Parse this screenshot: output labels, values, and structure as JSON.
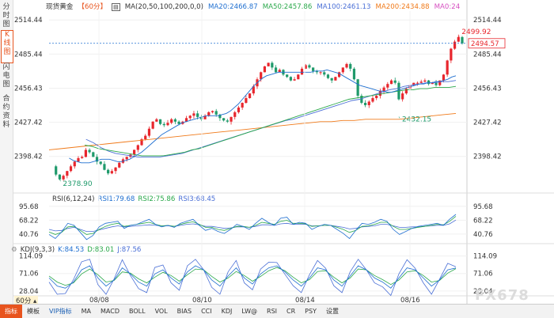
{
  "sidebar": {
    "tabs": [
      {
        "label": "分时图",
        "active": false
      },
      {
        "label": "K线图",
        "active": true
      },
      {
        "label": "闪电图",
        "active": false
      },
      {
        "label": "合约资料",
        "active": false
      }
    ]
  },
  "header": {
    "symbol": "现货黄金",
    "period_tag": "【60分】",
    "ma_label": "MA(20,50,100,200,0,0)",
    "ma20": "MA20:2466.87",
    "ma50": "MA50:2457.86",
    "ma100": "MA100:2461.13",
    "ma200": "MA200:2434.88",
    "ma0": "MA0:24"
  },
  "rsi_header": {
    "label": "RSI(6,12,24)",
    "rsi1": "RSI1:79.68",
    "rsi2": "RSI2:75.86",
    "rsi3": "RSI3:68.45"
  },
  "kdj_header": {
    "label": "KDJ(9,3,3)",
    "k": "K:84.53",
    "d": "D:83.01",
    "j": "J:87.56"
  },
  "colors": {
    "up": "#e8262d",
    "down": "#1f9a6b",
    "ma20": "#1f6fd0",
    "ma50": "#2aa84a",
    "ma100": "#4a6fd6",
    "ma200": "#f07a1a",
    "ma0": "#d64fc0",
    "accent": "#e8541e"
  },
  "chart_data": [
    {
      "type": "candlestick",
      "ylim": [
        2370,
        2522
      ],
      "y_ticks": [
        "2514.44",
        "2485.44",
        "2456.43",
        "2427.42",
        "2398.42"
      ],
      "x_ticks": [
        "08/08",
        "08/10",
        "08/14",
        "08/16"
      ],
      "last_price": "2494.57",
      "annotations": {
        "high": "2499.92",
        "mid_low": "2432.15",
        "low": "2378.90"
      },
      "price_path": [
        2390,
        2383,
        2378.9,
        2382,
        2386,
        2390,
        2394,
        2397,
        2398,
        2404,
        2402,
        2398,
        2394,
        2392,
        2387,
        2384,
        2386,
        2389,
        2393,
        2396,
        2398,
        2400,
        2404,
        2408,
        2413,
        2416,
        2422,
        2428,
        2430,
        2426,
        2425,
        2427,
        2430,
        2428,
        2426,
        2428,
        2431,
        2433,
        2435,
        2432,
        2430,
        2433,
        2436,
        2437,
        2434,
        2431,
        2429,
        2428,
        2432,
        2436,
        2440,
        2444,
        2448,
        2452,
        2458,
        2464,
        2470,
        2475,
        2478,
        2474,
        2470,
        2472,
        2468,
        2466,
        2463,
        2464,
        2468,
        2473,
        2476,
        2474,
        2471,
        2470,
        2470,
        2468,
        2465,
        2463,
        2466,
        2470,
        2474,
        2477,
        2473,
        2464,
        2450,
        2444,
        2442,
        2445,
        2448,
        2450,
        2454,
        2457,
        2460,
        2463,
        2461,
        2447,
        2452,
        2456,
        2459,
        2461,
        2461,
        2462,
        2463,
        2460,
        2461,
        2459,
        2463,
        2468,
        2480,
        2490,
        2496,
        2499.92,
        2494.57
      ],
      "ma20": [
        null,
        null,
        null,
        null,
        null,
        2397,
        2395,
        2394,
        2393,
        2393,
        2393,
        2394,
        2395,
        2396,
        2396,
        2396,
        2395,
        2394,
        2394,
        2395,
        2396,
        2398,
        2400,
        2402,
        2405,
        2408,
        2411,
        2414,
        2417,
        2419,
        2421,
        2423,
        2425,
        2427,
        2428,
        2429,
        2430,
        2431,
        2432,
        2433,
        2433,
        2433,
        2433,
        2434,
        2435,
        2437,
        2440,
        2443,
        2447,
        2451,
        2455,
        2459,
        2462,
        2465,
        2467,
        2468,
        2469,
        2470,
        2470,
        2470,
        2470,
        2470,
        2470,
        2470,
        2470,
        2470,
        2471,
        2471,
        2471,
        2472,
        2471,
        2470,
        2469,
        2467,
        2465,
        2463,
        2461,
        2459,
        2458,
        2457,
        2456,
        2455,
        2454,
        2454,
        2453,
        2453,
        2454,
        2455,
        2456,
        2457,
        2458,
        2459,
        2460,
        2460,
        2461,
        2461,
        2462,
        2462,
        2463,
        2464,
        2466,
        2467
      ],
      "ma50": [
        null,
        null,
        null,
        null,
        null,
        2408,
        2407,
        2405,
        2404,
        2403,
        2402,
        2401,
        2400,
        2399,
        2399,
        2399,
        2399,
        2400,
        2401,
        2402,
        2404,
        2405,
        2407,
        2409,
        2411,
        2413,
        2415,
        2417,
        2419,
        2421,
        2423,
        2425,
        2427,
        2429,
        2431,
        2433,
        2435,
        2437,
        2439,
        2441,
        2443,
        2445,
        2447,
        2448,
        2449,
        2450,
        2451,
        2452,
        2453,
        2454,
        2455,
        2455,
        2456,
        2456,
        2457,
        2457,
        2457,
        2458
      ],
      "ma100": [
        null,
        null,
        null,
        null,
        null,
        2413,
        2410,
        2406,
        2403,
        2401,
        2400,
        2399,
        2398,
        2398,
        2398,
        2398,
        2399,
        2400,
        2401,
        2403,
        2405,
        2407,
        2409,
        2411,
        2413,
        2415,
        2417,
        2419,
        2421,
        2423,
        2425,
        2427,
        2429,
        2430,
        2432,
        2434,
        2436,
        2438,
        2440,
        2442,
        2444,
        2446,
        2447,
        2449,
        2451,
        2453,
        2455,
        2456,
        2458,
        2459,
        2460,
        2461,
        2461,
        2462,
        2462,
        2463
      ],
      "ma200": [
        2404,
        2405,
        2406,
        2407,
        2408,
        2409,
        2410,
        2411,
        2412,
        2413,
        2414,
        2415,
        2416,
        2417,
        2418,
        2419,
        2420,
        2421,
        2422,
        2423,
        2424,
        2425,
        2426,
        2427,
        2428,
        2428,
        2429,
        2429,
        2430,
        2430,
        2430,
        2430,
        2431,
        2432,
        2433,
        2434,
        2435
      ],
      "rsi": {
        "ylim": [
          25,
          100
        ],
        "y_ticks": [
          "95.68",
          "68.22",
          "40.76"
        ],
        "rsi1": [
          40,
          32,
          45,
          62,
          58,
          44,
          30,
          38,
          55,
          62,
          64,
          66,
          52,
          58,
          60,
          65,
          70,
          60,
          55,
          58,
          54,
          62,
          66,
          70,
          58,
          48,
          52,
          46,
          42,
          50,
          60,
          56,
          50,
          62,
          72,
          64,
          58,
          72,
          74,
          60,
          64,
          62,
          50,
          56,
          60,
          58,
          50,
          42,
          32,
          48,
          62,
          60,
          64,
          70,
          66,
          50,
          40,
          46,
          52,
          56,
          58,
          60,
          62,
          58,
          70,
          79.68
        ],
        "rsi2": [
          45,
          40,
          44,
          55,
          56,
          48,
          40,
          42,
          50,
          56,
          60,
          62,
          56,
          58,
          60,
          62,
          64,
          60,
          57,
          58,
          56,
          60,
          63,
          65,
          60,
          54,
          54,
          50,
          48,
          52,
          56,
          56,
          54,
          58,
          64,
          62,
          60,
          66,
          68,
          62,
          62,
          61,
          56,
          57,
          58,
          58,
          54,
          50,
          44,
          48,
          56,
          57,
          60,
          64,
          64,
          56,
          50,
          50,
          52,
          54,
          56,
          58,
          60,
          59,
          66,
          75.86
        ],
        "rsi3": [
          50,
          47,
          48,
          52,
          54,
          50,
          46,
          46,
          49,
          52,
          55,
          57,
          55,
          56,
          57,
          58,
          59,
          58,
          57,
          57,
          56,
          58,
          60,
          61,
          59,
          56,
          56,
          54,
          52,
          53,
          55,
          55,
          54,
          56,
          59,
          59,
          58,
          61,
          62,
          60,
          60,
          60,
          57,
          57,
          58,
          58,
          56,
          54,
          51,
          52,
          55,
          56,
          57,
          60,
          60,
          57,
          54,
          54,
          55,
          55,
          56,
          57,
          58,
          58,
          61,
          68.45
        ]
      },
      "kdj": {
        "ylim": [
          20,
          125
        ],
        "y_ticks": [
          "114.09",
          "71.06",
          "28.04"
        ],
        "k": [
          60,
          40,
          35,
          50,
          80,
          90,
          60,
          40,
          55,
          85,
          70,
          50,
          40,
          70,
          80,
          60,
          45,
          75,
          90,
          80,
          55,
          40,
          65,
          85,
          60,
          45,
          70,
          85,
          90,
          75,
          55,
          40,
          60,
          85,
          80,
          55,
          40,
          65,
          90,
          80,
          60,
          50,
          35,
          60,
          85,
          80,
          60,
          40,
          55,
          80,
          84.53
        ],
        "d": [
          65,
          50,
          42,
          48,
          70,
          82,
          68,
          50,
          54,
          75,
          72,
          58,
          48,
          62,
          74,
          66,
          52,
          68,
          82,
          80,
          64,
          50,
          60,
          76,
          66,
          52,
          64,
          78,
          86,
          78,
          62,
          48,
          56,
          76,
          78,
          62,
          48,
          60,
          82,
          80,
          66,
          56,
          44,
          55,
          75,
          78,
          66,
          50,
          54,
          72,
          83.01
        ],
        "j": [
          50,
          20,
          22,
          56,
          100,
          106,
          44,
          20,
          58,
          105,
          66,
          34,
          24,
          86,
          92,
          48,
          30,
          90,
          106,
          80,
          37,
          20,
          75,
          103,
          48,
          31,
          82,
          99,
          98,
          69,
          41,
          24,
          68,
          103,
          84,
          41,
          24,
          75,
          106,
          80,
          48,
          38,
          17,
          70,
          105,
          84,
          48,
          20,
          57,
          96,
          87.56
        ]
      }
    }
  ],
  "bottom_bar": {
    "period": "60分",
    "items": [
      "指标",
      "模板",
      "VIP指标",
      "MA",
      "MACD",
      "BOLL",
      "VOL",
      "BIAS",
      "CCI",
      "KDJ",
      "LW@",
      "RSI",
      "CR",
      "PSY",
      "设置"
    ]
  },
  "watermark": "FX678"
}
